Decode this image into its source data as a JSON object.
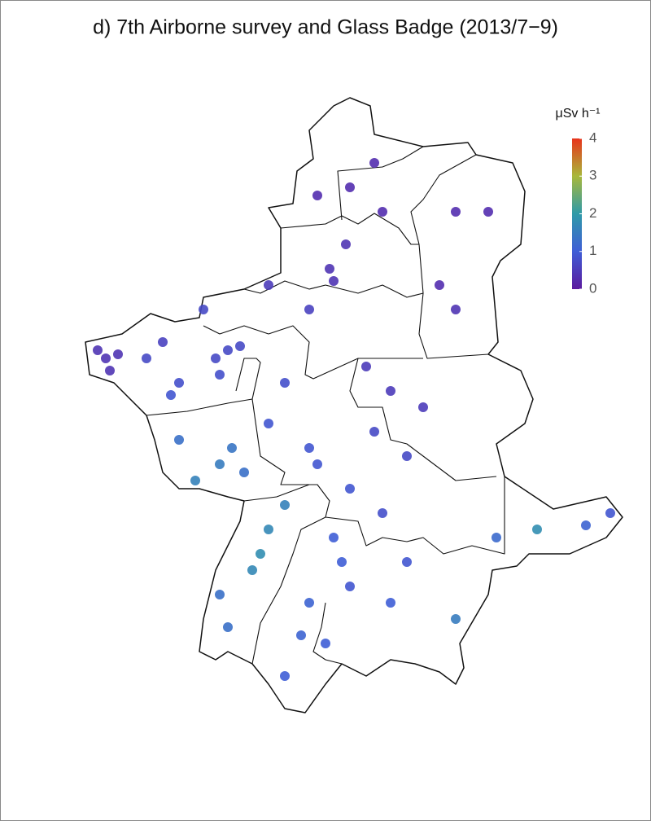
{
  "chart_data": {
    "type": "scatter",
    "title": "d) 7th Airborne survey and Glass Badge (2013/7−9)",
    "xlim": [
      0,
      680
    ],
    "ylim": [
      0,
      760
    ],
    "x": [
      45,
      50,
      35,
      60,
      195,
      180,
      210,
      185,
      125,
      135,
      320,
      340,
      325,
      295,
      245,
      165,
      115,
      95,
      295,
      305,
      200,
      185,
      155,
      215,
      135,
      245,
      235,
      225,
      265,
      185,
      195,
      325,
      335,
      345,
      295,
      285,
      265,
      315,
      385,
      415,
      435,
      395,
      365,
      455,
      475,
      385,
      345,
      375,
      305,
      475,
      515,
      575,
      635,
      665,
      525,
      475,
      395,
      415,
      245,
      265,
      375,
      345
    ],
    "y": [
      440,
      425,
      450,
      445,
      450,
      440,
      455,
      420,
      395,
      410,
      550,
      580,
      535,
      500,
      530,
      500,
      460,
      440,
      330,
      310,
      330,
      310,
      290,
      300,
      340,
      230,
      200,
      180,
      260,
      150,
      110,
      220,
      190,
      160,
      140,
      100,
      50,
      90,
      250,
      320,
      380,
      400,
      430,
      530,
      620,
      620,
      650,
      680,
      640,
      500,
      620,
      230,
      235,
      250,
      220,
      120,
      140,
      190,
      360,
      410,
      350,
      280
    ],
    "values": [
      0.4,
      0.4,
      0.4,
      0.4,
      0.7,
      0.7,
      0.7,
      0.8,
      0.9,
      0.8,
      0.4,
      0.4,
      0.4,
      0.6,
      0.5,
      0.7,
      0.6,
      0.7,
      0.9,
      0.9,
      1.4,
      1.5,
      1.6,
      1.3,
      1.3,
      1.7,
      1.8,
      1.7,
      1.6,
      1.3,
      1.3,
      1.0,
      1.0,
      0.9,
      1.1,
      1.1,
      1.0,
      1.0,
      0.8,
      0.7,
      0.5,
      0.5,
      0.5,
      0.3,
      0.3,
      0.3,
      0.3,
      0.3,
      0.3,
      0.4,
      0.3,
      1.8,
      1.1,
      0.9,
      1.2,
      1.5,
      1.0,
      0.9,
      0.9,
      0.8,
      0.7,
      0.9
    ],
    "colorbar": {
      "label": "μSv h⁻¹",
      "lim": [
        0,
        4
      ],
      "ticks": [
        0,
        1,
        2,
        3,
        4
      ],
      "colormap": [
        "#5b1a9e",
        "#3f5ed6",
        "#2f9aa8",
        "#a8b83a",
        "#e8341c"
      ]
    }
  }
}
